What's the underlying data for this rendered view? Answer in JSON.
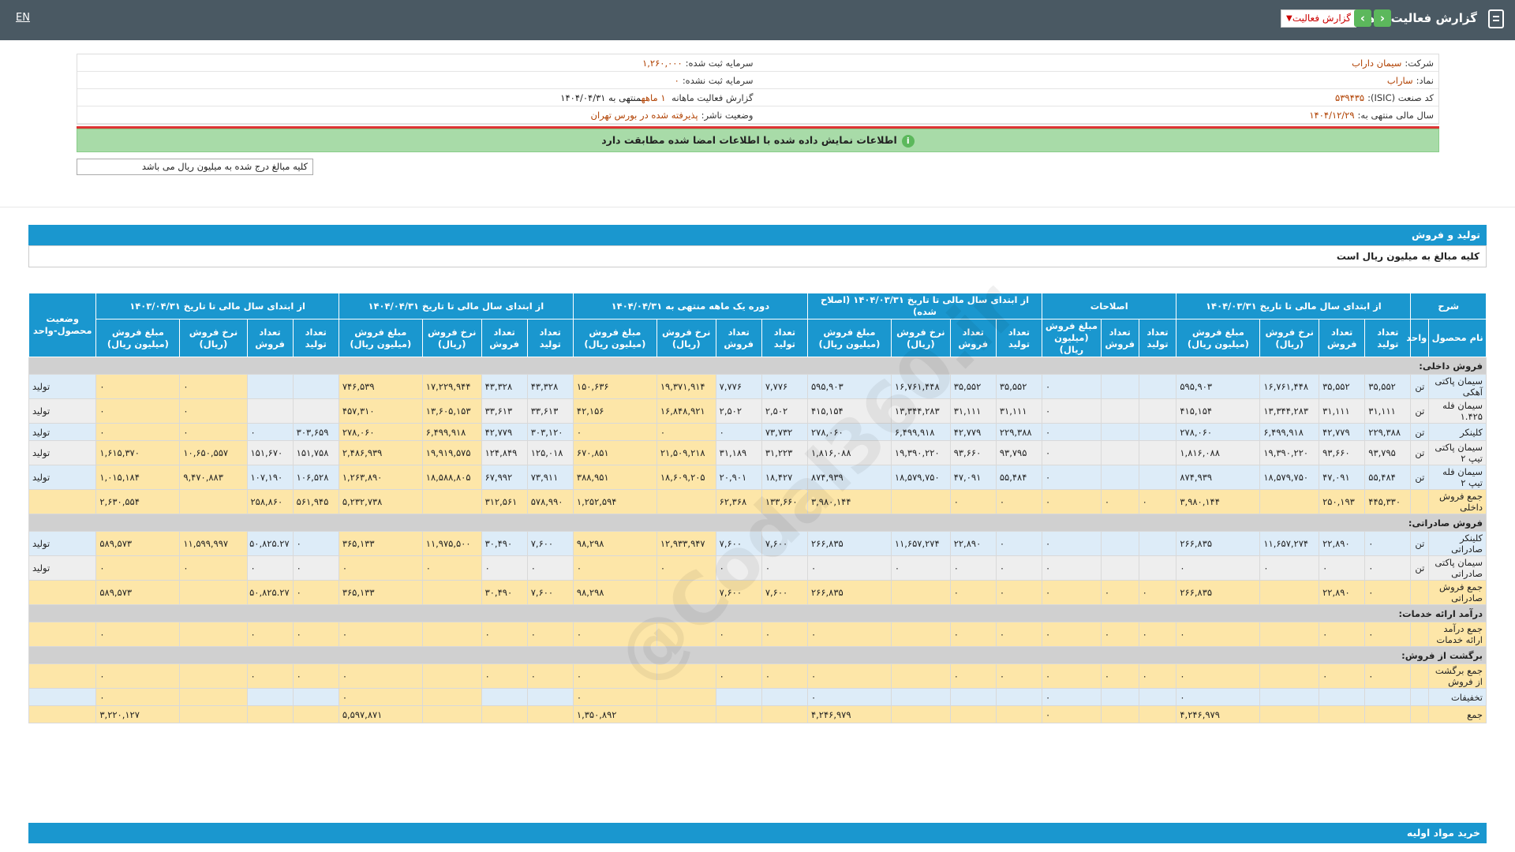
{
  "topbar": {
    "title": "گزارش فعالیت ماهانه",
    "select": "گزارش فعالیت",
    "lang": "EN"
  },
  "info": {
    "company_label": "شرکت:",
    "company": "سیمان داراب",
    "reg_cap_label": "سرمایه ثبت شده:",
    "reg_cap": "۱,۲۶۰,۰۰۰",
    "symbol_label": "نماد:",
    "symbol": "ساراب",
    "unreg_cap_label": "سرمایه ثبت نشده:",
    "unreg_cap": "۰",
    "isic_label": "کد صنعت (ISIC):",
    "isic": "۵۳۹۴۳۵",
    "report_label": "گزارش فعالیت ماهانه",
    "report_period": "۱ ماهه",
    "report_end": "منتهی به ۱۴۰۴/۰۴/۳۱",
    "fy_label": "سال مالی منتهی به:",
    "fy": "۱۴۰۴/۱۲/۲۹",
    "status_label": "وضعیت ناشر:",
    "status": "پذیرفته شده در بورس تهران"
  },
  "notice": "اطلاعات نمایش داده شده با اطلاعات امضا شده مطابقت دارد",
  "unit_note": "کلیه مبالغ درج شده به میلیون ریال می باشد",
  "section1": {
    "title": "تولید و فروش",
    "subtitle": "کلیه مبالغ به میلیون ریال است"
  },
  "section2": {
    "title": "خرید مواد اولیه"
  },
  "watermark": "@Codal360.ir",
  "table": {
    "groups": [
      "شرح",
      "از ابتدای سال مالی تا تاریخ ۱۴۰۴/۰۳/۳۱",
      "اصلاحات",
      "از ابتدای سال مالی تا تاریخ ۱۴۰۴/۰۳/۳۱ (اصلاح شده)",
      "دوره یک ماهه منتهی به ۱۴۰۴/۰۴/۳۱",
      "از ابتدای سال مالی تا تاریخ ۱۴۰۴/۰۴/۳۱",
      "از ابتدای سال مالی تا تاریخ ۱۴۰۳/۰۴/۳۱",
      "وضعیت محصول-واحد"
    ],
    "cols": [
      "نام محصول",
      "واحد",
      "تعداد تولید",
      "تعداد فروش",
      "نرخ فروش (ریال)",
      "مبلغ فروش (میلیون ریال)",
      "تعداد تولید",
      "تعداد فروش",
      "مبلغ فروش (میلیون ریال)",
      "تعداد تولید",
      "تعداد فروش",
      "نرخ فروش (ریال)",
      "مبلغ فروش (میلیون ریال)",
      "تعداد تولید",
      "تعداد فروش",
      "نرخ فروش (ریال)",
      "مبلغ فروش (میلیون ریال)",
      "تعداد تولید",
      "تعداد فروش",
      "نرخ فروش (ریال)",
      "مبلغ فروش (میلیون ریال)",
      "تعداد تولید",
      "تعداد فروش",
      "نرخ فروش (ریال)",
      "مبلغ فروش (میلیون ریال)"
    ],
    "rows": [
      {
        "type": "grey",
        "cells": [
          "فروش داخلی:"
        ]
      },
      {
        "type": "blue",
        "cells": [
          "سیمان پاکتی آهکی",
          "تن",
          "۳۵,۵۵۲",
          "۳۵,۵۵۲",
          "۱۶,۷۶۱,۴۴۸",
          "۵۹۵,۹۰۳",
          "",
          "",
          "۰",
          "۳۵,۵۵۲",
          "۳۵,۵۵۲",
          "۱۶,۷۶۱,۴۴۸",
          "۵۹۵,۹۰۳",
          "۷,۷۷۶",
          "۷,۷۷۶",
          "۱۹,۳۷۱,۹۱۴",
          "۱۵۰,۶۳۶",
          "۴۳,۳۲۸",
          "۴۳,۳۲۸",
          "۱۷,۲۲۹,۹۴۴",
          "۷۴۶,۵۳۹",
          "",
          "",
          "۰",
          "۰",
          "تولید"
        ]
      },
      {
        "type": "plain",
        "cells": [
          "سیمان فله ۱.۴۲۵",
          "تن",
          "۳۱,۱۱۱",
          "۳۱,۱۱۱",
          "۱۳,۳۴۴,۲۸۳",
          "۴۱۵,۱۵۴",
          "",
          "",
          "۰",
          "۳۱,۱۱۱",
          "۳۱,۱۱۱",
          "۱۳,۳۴۴,۲۸۳",
          "۴۱۵,۱۵۴",
          "۲,۵۰۲",
          "۲,۵۰۲",
          "۱۶,۸۴۸,۹۲۱",
          "۴۲,۱۵۶",
          "۳۳,۶۱۳",
          "۳۳,۶۱۳",
          "۱۳,۶۰۵,۱۵۳",
          "۴۵۷,۳۱۰",
          "",
          "",
          "۰",
          "۰",
          "تولید"
        ]
      },
      {
        "type": "blue",
        "cells": [
          "کلینکر",
          "تن",
          "۲۲۹,۳۸۸",
          "۴۲,۷۷۹",
          "۶,۴۹۹,۹۱۸",
          "۲۷۸,۰۶۰",
          "",
          "",
          "۰",
          "۲۲۹,۳۸۸",
          "۴۲,۷۷۹",
          "۶,۴۹۹,۹۱۸",
          "۲۷۸,۰۶۰",
          "۷۳,۷۳۲",
          "۰",
          "۰",
          "۰",
          "۳۰۳,۱۲۰",
          "۴۲,۷۷۹",
          "۶,۴۹۹,۹۱۸",
          "۲۷۸,۰۶۰",
          "۳۰۳,۶۵۹",
          "۰",
          "۰",
          "۰",
          "تولید"
        ]
      },
      {
        "type": "plain",
        "cells": [
          "سیمان پاکتی تیپ ۲",
          "تن",
          "۹۳,۷۹۵",
          "۹۳,۶۶۰",
          "۱۹,۳۹۰,۲۲۰",
          "۱,۸۱۶,۰۸۸",
          "",
          "",
          "۰",
          "۹۳,۷۹۵",
          "۹۳,۶۶۰",
          "۱۹,۳۹۰,۲۲۰",
          "۱,۸۱۶,۰۸۸",
          "۳۱,۲۲۳",
          "۳۱,۱۸۹",
          "۲۱,۵۰۹,۲۱۸",
          "۶۷۰,۸۵۱",
          "۱۲۵,۰۱۸",
          "۱۲۴,۸۴۹",
          "۱۹,۹۱۹,۵۷۵",
          "۲,۴۸۶,۹۳۹",
          "۱۵۱,۷۵۸",
          "۱۵۱,۶۷۰",
          "۱۰,۶۵۰,۵۵۷",
          "۱,۶۱۵,۳۷۰",
          "تولید"
        ]
      },
      {
        "type": "blue",
        "cells": [
          "سیمان فله تیپ ۲",
          "تن",
          "۵۵,۴۸۴",
          "۴۷,۰۹۱",
          "۱۸,۵۷۹,۷۵۰",
          "۸۷۴,۹۳۹",
          "",
          "",
          "۰",
          "۵۵,۴۸۴",
          "۴۷,۰۹۱",
          "۱۸,۵۷۹,۷۵۰",
          "۸۷۴,۹۳۹",
          "۱۸,۴۲۷",
          "۲۰,۹۰۱",
          "۱۸,۶۰۹,۲۰۵",
          "۳۸۸,۹۵۱",
          "۷۳,۹۱۱",
          "۶۷,۹۹۲",
          "۱۸,۵۸۸,۸۰۵",
          "۱,۲۶۳,۸۹۰",
          "۱۰۶,۵۲۸",
          "۱۰۷,۱۹۰",
          "۹,۴۷۰,۸۸۳",
          "۱,۰۱۵,۱۸۴",
          "تولید"
        ]
      },
      {
        "type": "orange",
        "cells": [
          "جمع فروش داخلی",
          "",
          "۴۴۵,۳۳۰",
          "۲۵۰,۱۹۳",
          "",
          "۳,۹۸۰,۱۴۴",
          "۰",
          "۰",
          "۰",
          "۰",
          "۰",
          "",
          "۳,۹۸۰,۱۴۴",
          "۱۳۳,۶۶۰",
          "۶۲,۳۶۸",
          "",
          "۱,۲۵۲,۵۹۴",
          "۵۷۸,۹۹۰",
          "۳۱۲,۵۶۱",
          "",
          "۵,۲۳۲,۷۳۸",
          "۵۶۱,۹۴۵",
          "۲۵۸,۸۶۰",
          "",
          "۲,۶۳۰,۵۵۴",
          ""
        ]
      },
      {
        "type": "grey",
        "cells": [
          "فروش صادراتی:"
        ]
      },
      {
        "type": "blue",
        "cells": [
          "کلینکر صادراتی",
          "تن",
          "۰",
          "۲۲,۸۹۰",
          "۱۱,۶۵۷,۲۷۴",
          "۲۶۶,۸۳۵",
          "",
          "",
          "۰",
          "۰",
          "۲۲,۸۹۰",
          "۱۱,۶۵۷,۲۷۴",
          "۲۶۶,۸۳۵",
          "۷,۶۰۰",
          "۷,۶۰۰",
          "۱۲,۹۳۳,۹۴۷",
          "۹۸,۲۹۸",
          "۷,۶۰۰",
          "۳۰,۴۹۰",
          "۱۱,۹۷۵,۵۰۰",
          "۳۶۵,۱۳۳",
          "۰",
          "۵۰,۸۲۵.۲۷",
          "۱۱,۵۹۹,۹۹۷",
          "۵۸۹,۵۷۳",
          "تولید"
        ]
      },
      {
        "type": "plain",
        "cells": [
          "سیمان پاکتی صادراتی",
          "تن",
          "۰",
          "۰",
          "۰",
          "۰",
          "",
          "",
          "۰",
          "۰",
          "۰",
          "۰",
          "۰",
          "۰",
          "۰",
          "۰",
          "۰",
          "۰",
          "۰",
          "۰",
          "۰",
          "۰",
          "۰",
          "۰",
          "۰",
          "تولید"
        ]
      },
      {
        "type": "orange",
        "cells": [
          "جمع فروش صادراتی",
          "",
          "۰",
          "۲۲,۸۹۰",
          "",
          "۲۶۶,۸۳۵",
          "۰",
          "۰",
          "۰",
          "۰",
          "۰",
          "",
          "۲۶۶,۸۳۵",
          "۷,۶۰۰",
          "۷,۶۰۰",
          "",
          "۹۸,۲۹۸",
          "۷,۶۰۰",
          "۳۰,۴۹۰",
          "",
          "۳۶۵,۱۳۳",
          "۰",
          "۵۰,۸۲۵.۲۷",
          "",
          "۵۸۹,۵۷۳",
          ""
        ]
      },
      {
        "type": "grey",
        "cells": [
          "درآمد ارائه خدمات:"
        ]
      },
      {
        "type": "orange",
        "cells": [
          "جمع درآمد ارائه خدمات",
          "",
          "۰",
          "۰",
          "",
          "۰",
          "۰",
          "۰",
          "۰",
          "۰",
          "۰",
          "",
          "۰",
          "۰",
          "۰",
          "",
          "۰",
          "۰",
          "۰",
          "",
          "۰",
          "۰",
          "۰",
          "",
          "۰",
          ""
        ]
      },
      {
        "type": "grey",
        "cells": [
          "برگشت از فروش:"
        ]
      },
      {
        "type": "orange",
        "cells": [
          "جمع برگشت از فروش",
          "",
          "۰",
          "۰",
          "",
          "۰",
          "۰",
          "۰",
          "۰",
          "۰",
          "۰",
          "",
          "۰",
          "۰",
          "۰",
          "",
          "۰",
          "۰",
          "۰",
          "",
          "۰",
          "۰",
          "۰",
          "",
          "۰",
          ""
        ]
      },
      {
        "type": "blue",
        "cells": [
          "تخفیفات",
          "",
          "",
          "",
          "",
          "۰",
          "",
          "",
          "۰",
          "",
          "",
          "",
          "۰",
          "",
          "",
          "",
          "۰",
          "",
          "",
          "",
          "۰",
          "",
          "",
          "",
          "۰",
          ""
        ]
      },
      {
        "type": "orange",
        "cells": [
          "جمع",
          "",
          "",
          "",
          "",
          "۴,۲۴۶,۹۷۹",
          "",
          "",
          "۰",
          "",
          "",
          "",
          "۴,۲۴۶,۹۷۹",
          "",
          "",
          "",
          "۱,۳۵۰,۸۹۲",
          "",
          "",
          "",
          "۵,۵۹۷,۸۷۱",
          "",
          "",
          "",
          "۳,۲۲۰,۱۲۷",
          ""
        ]
      }
    ]
  }
}
